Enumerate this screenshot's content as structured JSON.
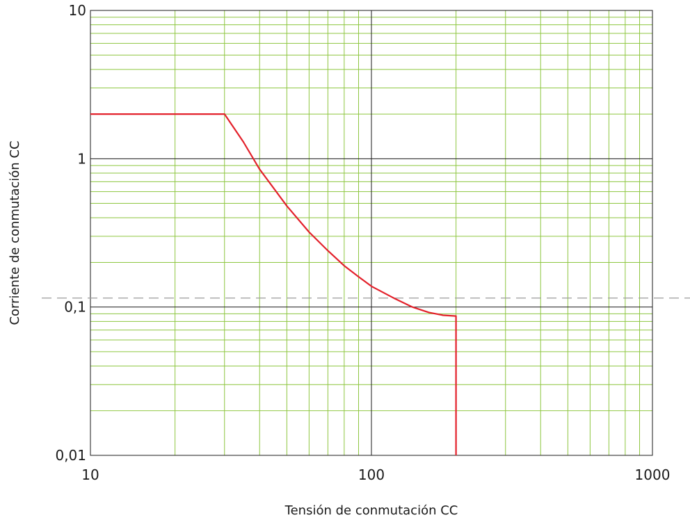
{
  "chart_data": {
    "type": "line",
    "xlabel": "Tensión de conmutación CC",
    "ylabel": "Corriente de conmutación CC",
    "x_scale": "log",
    "y_scale": "log",
    "xlim": [
      10,
      1000
    ],
    "ylim": [
      0.01,
      10
    ],
    "x_ticks": [
      {
        "value": 10,
        "label": "10"
      },
      {
        "value": 100,
        "label": "100"
      },
      {
        "value": 1000,
        "label": "1000"
      }
    ],
    "y_ticks": [
      {
        "value": 10,
        "label": "10"
      },
      {
        "value": 1,
        "label": "1"
      },
      {
        "value": 0.1,
        "label": "0,1"
      },
      {
        "value": 0.01,
        "label": "0,01"
      }
    ],
    "grid": true,
    "colors": {
      "major_grid": "#1a1a1a",
      "minor_grid": "#8dc63f",
      "series": "#e3202a",
      "dashed_line": "#9a9a9a"
    },
    "series": [
      {
        "values": [
          {
            "x": 10,
            "y": 2
          },
          {
            "x": 30,
            "y": 2
          },
          {
            "x": 35,
            "y": 1.3
          },
          {
            "x": 40,
            "y": 0.85
          },
          {
            "x": 50,
            "y": 0.48
          },
          {
            "x": 60,
            "y": 0.32
          },
          {
            "x": 70,
            "y": 0.24
          },
          {
            "x": 80,
            "y": 0.19
          },
          {
            "x": 90,
            "y": 0.16
          },
          {
            "x": 100,
            "y": 0.138
          },
          {
            "x": 120,
            "y": 0.115
          },
          {
            "x": 140,
            "y": 0.1
          },
          {
            "x": 160,
            "y": 0.092
          },
          {
            "x": 180,
            "y": 0.088
          },
          {
            "x": 200,
            "y": 0.087
          },
          {
            "x": 200,
            "y": 0.01
          }
        ]
      }
    ],
    "reference_line": {
      "orientation": "horizontal",
      "y": 0.115,
      "style": "dashed"
    }
  }
}
